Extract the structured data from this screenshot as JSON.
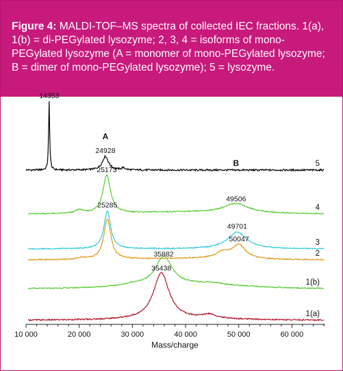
{
  "caption": {
    "figure_label": "Figure 4:",
    "text": " MALDI-TOF–MS spectra of collected IEC fractions. 1(a), 1(b) = di-PEGylated lysozyme; 2, 3, 4 = isoforms of mono-PEGylated lysozyme (A = monomer of mono-PEGylated lysozyme; B = dimer of mono-PEGylated lysozyme); 5 = lysozyme."
  },
  "colors": {
    "caption_bg": "#c8197c",
    "border": "#b4156e"
  },
  "chart_data": {
    "type": "line",
    "title": "",
    "xlabel": "Mass/charge",
    "ylabel": "",
    "xlim": [
      10000,
      66000
    ],
    "x_ticks": [
      10000,
      20000,
      30000,
      40000,
      50000,
      60000
    ],
    "x_tick_labels": [
      "10 000",
      "20 000",
      "30 000",
      "40 000",
      "50 000",
      "60 000"
    ],
    "grid": false,
    "legend": "none",
    "series": [
      {
        "name": "5",
        "color": "#000000",
        "peaks": [
          {
            "x": 14353,
            "height": 1.0,
            "width": 120
          },
          {
            "x": 24928,
            "height": 0.2,
            "width": 700
          },
          {
            "x": 28300,
            "height": 0.03,
            "width": 400
          }
        ],
        "baseline_drift": 0.0
      },
      {
        "name": "4",
        "color": "#55cc33",
        "peaks": [
          {
            "x": 25173,
            "height": 0.9,
            "width": 850
          },
          {
            "x": 20000,
            "height": 0.08,
            "width": 900
          },
          {
            "x": 49506,
            "height": 0.22,
            "width": 2800
          }
        ],
        "baseline_drift": 0.04
      },
      {
        "name": "3",
        "color": "#33c9d6",
        "peaks": [
          {
            "x": 25285,
            "height": 0.95,
            "width": 750
          },
          {
            "x": 49701,
            "height": 0.42,
            "width": 2200
          }
        ],
        "baseline_drift": 0.0
      },
      {
        "name": "2",
        "color": "#dd9a1e",
        "peaks": [
          {
            "x": 25285,
            "height": 0.95,
            "width": 800
          },
          {
            "x": 20500,
            "height": 0.04,
            "width": 900
          },
          {
            "x": 47000,
            "height": 0.15,
            "width": 1600
          },
          {
            "x": 50047,
            "height": 0.32,
            "width": 1500
          }
        ],
        "baseline_drift": 0.03
      },
      {
        "name": "1(b)",
        "color": "#55cc33",
        "peaks": [
          {
            "x": 35882,
            "height": 0.72,
            "width": 1900
          },
          {
            "x": 30000,
            "height": 0.04,
            "width": 1800
          },
          {
            "x": 45000,
            "height": 0.05,
            "width": 2500
          }
        ],
        "baseline_drift": 0.1
      },
      {
        "name": "1(a)",
        "color": "#b0162a",
        "peaks": [
          {
            "x": 35438,
            "height": 0.9,
            "width": 1800
          },
          {
            "x": 44500,
            "height": 0.08,
            "width": 1600
          }
        ],
        "baseline_drift": 0.02
      }
    ],
    "peak_labels": [
      {
        "text": "14353",
        "x": 14353,
        "series": "5"
      },
      {
        "text": "24928",
        "x": 24928,
        "series": "5"
      },
      {
        "text": "25173",
        "x": 25173,
        "series": "4"
      },
      {
        "text": "49506",
        "x": 49506,
        "series": "4"
      },
      {
        "text": "25285",
        "x": 25285,
        "series": "3"
      },
      {
        "text": "49701",
        "x": 49701,
        "series": "3"
      },
      {
        "text": "50047",
        "x": 50047,
        "series": "2"
      },
      {
        "text": "35882",
        "x": 35882,
        "series": "1(b)"
      },
      {
        "text": "35438",
        "x": 35438,
        "series": "1(a)"
      }
    ],
    "markers": [
      {
        "text": "A",
        "x": 24928
      },
      {
        "text": "B",
        "x": 49506
      }
    ]
  }
}
